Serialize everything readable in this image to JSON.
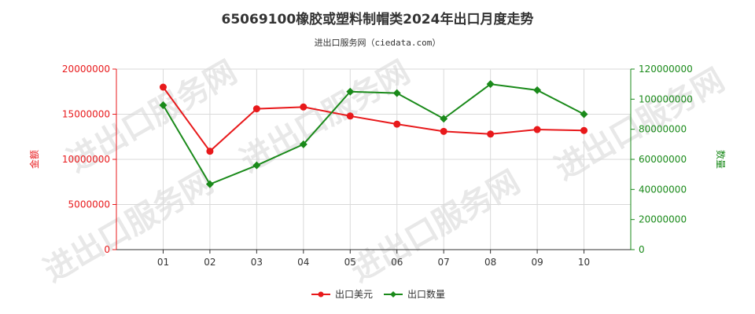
{
  "chart_data": {
    "type": "line",
    "title": "65069100橡胶或塑料制帽类2024年出口月度走势",
    "subtitle": "进出口服务网（ciedata.com）",
    "watermark": "进出口服务网",
    "categories": [
      "01",
      "02",
      "03",
      "04",
      "05",
      "06",
      "07",
      "08",
      "09",
      "10"
    ],
    "y_left": {
      "label": "金额",
      "ylim": [
        0,
        20000000
      ],
      "ticks": [
        "0",
        "5000000",
        "10000000",
        "15000000",
        "20000000"
      ],
      "tick_values": [
        0,
        5000000,
        10000000,
        15000000,
        20000000
      ],
      "color": "#e8191b"
    },
    "y_right": {
      "label": "数量",
      "ylim": [
        0,
        120000000
      ],
      "ticks": [
        "0",
        "20000000",
        "40000000",
        "60000000",
        "80000000",
        "100000000",
        "120000000"
      ],
      "tick_values": [
        0,
        20000000,
        40000000,
        60000000,
        80000000,
        100000000,
        120000000
      ],
      "color": "#1a8a1a"
    },
    "series": [
      {
        "name": "出口美元",
        "axis": "left",
        "color": "#e8191b",
        "marker": "circle",
        "values": [
          18000000,
          10900000,
          15600000,
          15800000,
          14800000,
          13900000,
          13100000,
          12800000,
          13300000,
          13200000
        ]
      },
      {
        "name": "出口数量",
        "axis": "right",
        "color": "#1a8a1a",
        "marker": "diamond",
        "values": [
          96000000,
          43500000,
          56000000,
          70000000,
          105000000,
          104000000,
          87000000,
          110000000,
          106000000,
          90000000
        ]
      }
    ],
    "grid": true,
    "legend_position": "bottom-center"
  }
}
